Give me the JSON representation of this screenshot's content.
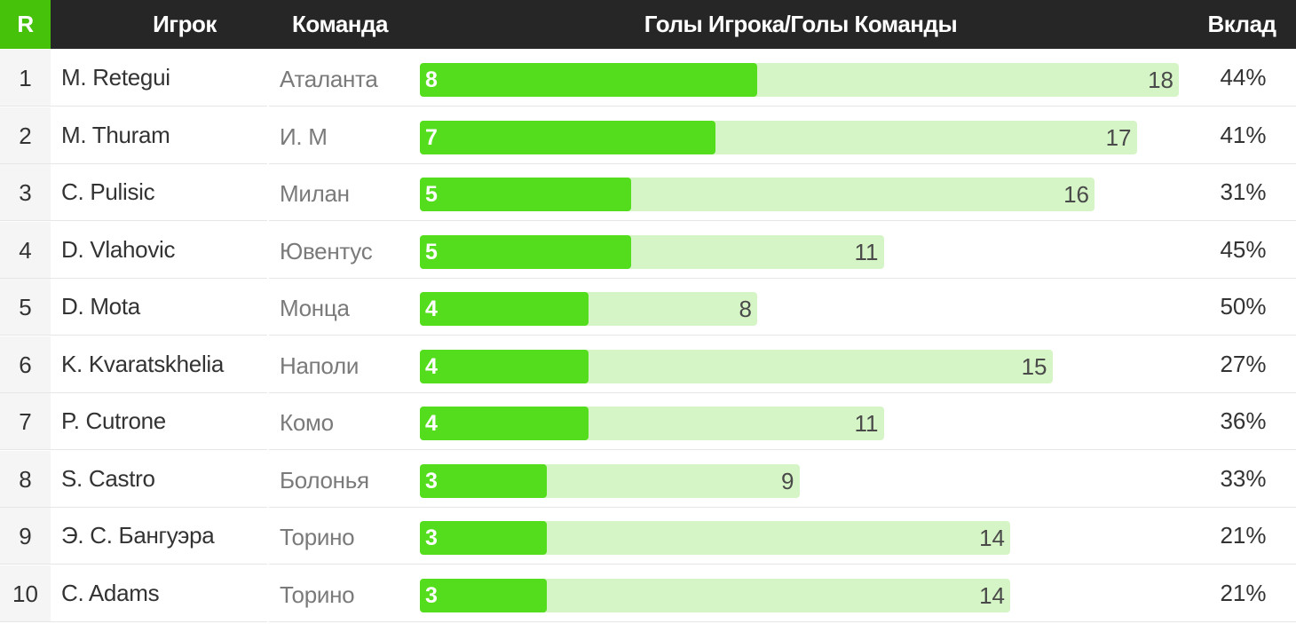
{
  "header": {
    "rank": "R",
    "player": "Игрок",
    "team": "Команда",
    "goals": "Голы Игрока/Голы Команды",
    "share": "Вклад"
  },
  "colors": {
    "header_bg": "#262626",
    "accent": "#47c20a",
    "player_bar": "#53dd1c",
    "team_bar": "#d6f5c6"
  },
  "chart_data": {
    "type": "bar",
    "title": "Голы Игрока/Голы Команды",
    "series": [
      {
        "name": "Голы Игрока",
        "values": [
          8,
          7,
          5,
          5,
          4,
          4,
          4,
          3,
          3,
          3
        ]
      },
      {
        "name": "Голы Команды",
        "values": [
          18,
          17,
          16,
          11,
          8,
          15,
          11,
          9,
          14,
          14
        ]
      }
    ],
    "rows": [
      {
        "rank": "1",
        "player": "M. Retegui",
        "team": "Аталанта",
        "player_goals": 8,
        "team_goals": 18,
        "share": "44%"
      },
      {
        "rank": "2",
        "player": "M. Thuram",
        "team": "И. М",
        "player_goals": 7,
        "team_goals": 17,
        "share": "41%"
      },
      {
        "rank": "3",
        "player": "C. Pulisic",
        "team": "Милан",
        "player_goals": 5,
        "team_goals": 16,
        "share": "31%"
      },
      {
        "rank": "4",
        "player": "D. Vlahovic",
        "team": "Ювентус",
        "player_goals": 5,
        "team_goals": 11,
        "share": "45%"
      },
      {
        "rank": "5",
        "player": "D. Mota",
        "team": "Монца",
        "player_goals": 4,
        "team_goals": 8,
        "share": "50%"
      },
      {
        "rank": "6",
        "player": "K. Kvaratskhelia",
        "team": "Наполи",
        "player_goals": 4,
        "team_goals": 15,
        "share": "27%"
      },
      {
        "rank": "7",
        "player": "P. Cutrone",
        "team": "Комо",
        "player_goals": 4,
        "team_goals": 11,
        "share": "36%"
      },
      {
        "rank": "8",
        "player": "S. Castro",
        "team": "Болонья",
        "player_goals": 3,
        "team_goals": 9,
        "share": "33%"
      },
      {
        "rank": "9",
        "player": "Э. С. Бангуэра",
        "team": "Торино",
        "player_goals": 3,
        "team_goals": 14,
        "share": "21%"
      },
      {
        "rank": "10",
        "player": "C. Adams",
        "team": "Торино",
        "player_goals": 3,
        "team_goals": 14,
        "share": "21%"
      }
    ]
  }
}
